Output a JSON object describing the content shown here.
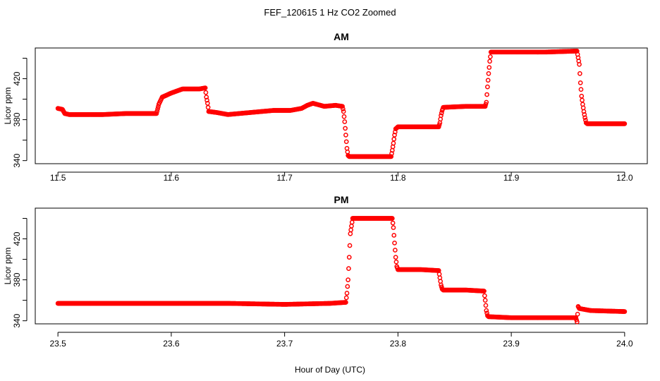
{
  "figure": {
    "title": "FEF_120615  1 Hz CO2 Zoomed",
    "xlabel": "Hour of Day (UTC)"
  },
  "chart_data": [
    {
      "type": "scatter",
      "title": "AM",
      "xlabel": "Hour of Day (UTC)",
      "ylabel": "Licor ppm",
      "xlim": [
        11.5,
        12.0
      ],
      "ylim": [
        340,
        450
      ],
      "xticks": [
        11.5,
        11.6,
        11.7,
        11.8,
        11.9,
        12.0
      ],
      "xtick_labels": [
        "11.5",
        "11.6",
        "11.7",
        "11.8",
        "11.9",
        "12.0"
      ],
      "yticks": [
        340,
        360,
        380,
        400,
        420,
        440
      ],
      "ytick_labels": [
        "340",
        "",
        "380",
        "",
        "420",
        ""
      ],
      "marker": "open-circle",
      "color": "#ff0000",
      "series": [
        {
          "x": [
            11.5,
            11.504,
            11.506,
            11.51,
            11.52,
            11.54,
            11.56,
            11.58,
            11.587,
            11.589,
            11.592,
            11.6,
            11.61,
            11.625,
            11.63,
            11.631,
            11.632,
            11.633,
            11.64,
            11.65,
            11.66,
            11.67,
            11.69,
            11.705,
            11.715,
            11.72,
            11.725,
            11.735,
            11.745,
            11.751,
            11.752,
            11.753,
            11.754,
            11.755,
            11.756,
            11.757,
            11.76,
            11.78,
            11.794,
            11.795,
            11.796,
            11.797,
            11.798,
            11.8,
            11.82,
            11.836,
            11.837,
            11.838,
            11.839,
            11.84,
            11.86,
            11.877,
            11.878,
            11.879,
            11.88,
            11.881,
            11.882,
            11.9,
            11.93,
            11.958,
            11.96,
            11.961,
            11.962,
            11.963,
            11.964,
            11.965,
            11.966,
            11.967,
            11.98,
            12.0
          ],
          "y": [
            391,
            390,
            386,
            385,
            385,
            385,
            386,
            386,
            386,
            395,
            402,
            406,
            410,
            410,
            411,
            402,
            396,
            388,
            387,
            385,
            386,
            387,
            389,
            389,
            391,
            394,
            396,
            393,
            394,
            393,
            388,
            378,
            365,
            352,
            345,
            344,
            344,
            344,
            344,
            350,
            357,
            365,
            371,
            373,
            373,
            373,
            377,
            384,
            389,
            392,
            393,
            393,
            397,
            412,
            425,
            437,
            446,
            446,
            446,
            447,
            434,
            416,
            403,
            395,
            388,
            382,
            377,
            376,
            376,
            376
          ]
        }
      ]
    },
    {
      "type": "scatter",
      "title": "PM",
      "xlabel": "Hour of Day (UTC)",
      "ylabel": "Licor ppm",
      "xlim": [
        23.5,
        24.0
      ],
      "ylim": [
        340,
        450
      ],
      "xticks": [
        23.5,
        23.6,
        23.7,
        23.8,
        23.9,
        24.0
      ],
      "xtick_labels": [
        "23.5",
        "23.6",
        "23.7",
        "23.8",
        "23.9",
        "24.0"
      ],
      "yticks": [
        340,
        360,
        380,
        400,
        420,
        440
      ],
      "ytick_labels": [
        "340",
        "",
        "380",
        "",
        "420",
        ""
      ],
      "marker": "open-circle",
      "color": "#ff0000",
      "series": [
        {
          "x": [
            23.5,
            23.55,
            23.6,
            23.65,
            23.7,
            23.74,
            23.754,
            23.755,
            23.756,
            23.757,
            23.758,
            23.76,
            23.78,
            23.795,
            23.796,
            23.797,
            23.798,
            23.799,
            23.8,
            23.82,
            23.836,
            23.837,
            23.838,
            23.839,
            23.84,
            23.86,
            23.876,
            23.877,
            23.878,
            23.879,
            23.88,
            23.9,
            23.957,
            23.958,
            23.959,
            23.96,
            23.97,
            24.0
          ],
          "y": [
            357,
            357,
            357,
            357,
            356,
            357,
            358,
            367,
            380,
            402,
            425,
            440,
            440,
            440,
            431,
            416,
            402,
            393,
            390,
            390,
            389,
            382,
            375,
            371,
            370,
            370,
            369,
            360,
            350,
            345,
            344,
            343,
            343,
            339,
            354,
            352,
            350,
            349
          ]
        }
      ]
    }
  ]
}
